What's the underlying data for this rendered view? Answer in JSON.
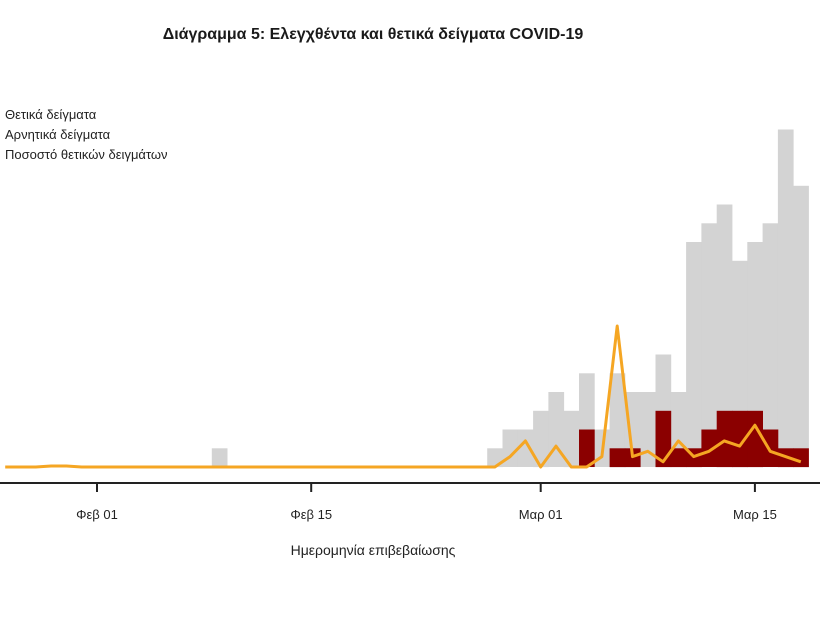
{
  "title": "Διάγραμμα 5: Ελεγχθέντα και θετικά δείγματα COVID-19",
  "legend": {
    "positive": "Θετικά δείγματα",
    "negative": "Αρνητικά δείγματα",
    "rate": "Ποσοστό θετικών δειγμάτων"
  },
  "colors": {
    "positive": "#8b0000",
    "negative": "#d3d3d3",
    "rate": "#f5a623",
    "axis": "#222222"
  },
  "chart_data": {
    "type": "bar",
    "xlabel": "Ημερομηνία επιβεβαίωσης",
    "ylabel": "",
    "x_ticks": [
      "Φεβ 01",
      "Φεβ 15",
      "Μαρ 01",
      "Μαρ 15"
    ],
    "x_tick_days": [
      0,
      14,
      29,
      43
    ],
    "start_day": -6,
    "grid": false,
    "legend_position": "top-left",
    "series": [
      {
        "name": "Θετικά δείγματα",
        "type": "bar",
        "values": [
          0,
          0,
          0,
          0,
          0,
          0,
          0,
          0,
          0,
          0,
          0,
          0,
          0,
          0,
          0,
          0,
          0,
          0,
          0,
          0,
          0,
          0,
          0,
          0,
          0,
          0,
          0,
          0,
          0,
          0,
          0,
          0,
          0,
          0,
          0,
          0,
          0,
          0,
          2,
          0,
          1,
          1,
          0,
          3,
          1,
          1,
          2,
          3,
          3,
          3,
          2,
          1,
          1
        ]
      },
      {
        "name": "Αρνητικά δείγματα",
        "type": "bar",
        "values": [
          0,
          0,
          0,
          0,
          0,
          0,
          0,
          0,
          0,
          0,
          0,
          0,
          0,
          0,
          1,
          0,
          0,
          0,
          0,
          0,
          0,
          0,
          0,
          0,
          0,
          0,
          0,
          0,
          0,
          0,
          0,
          0,
          1,
          2,
          2,
          3,
          4,
          3,
          3,
          2,
          4,
          3,
          4,
          3,
          3,
          11,
          11,
          11,
          8,
          9,
          11,
          17,
          14
        ]
      },
      {
        "name": "Ποσοστό θετικών δειγμάτων",
        "type": "line",
        "values": [
          0,
          0,
          0,
          0.2,
          0.2,
          0,
          0,
          0,
          0,
          0,
          0,
          0,
          0,
          0,
          0,
          0,
          0,
          0,
          0,
          0,
          0,
          0,
          0,
          0,
          0,
          0,
          0,
          0,
          0,
          0,
          0,
          0,
          0,
          2,
          5,
          0,
          4,
          0,
          0,
          2,
          27,
          2,
          3,
          1,
          5,
          2,
          3,
          5,
          4,
          8,
          3,
          2,
          1
        ]
      }
    ]
  }
}
